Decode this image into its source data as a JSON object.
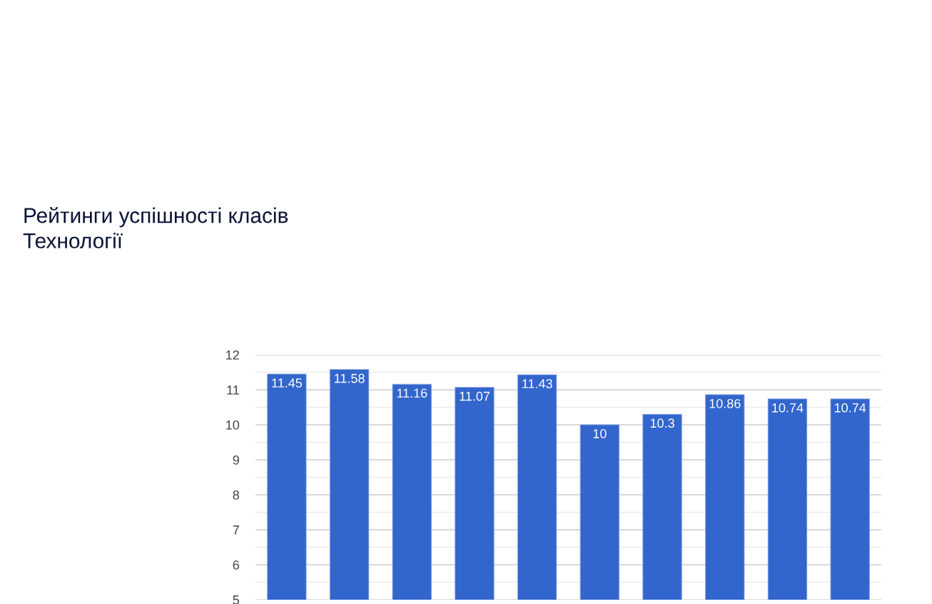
{
  "chart_data": {
    "type": "bar",
    "title": "Рейтинги успішності класів\nТехнології",
    "categories": [
      null,
      null,
      null,
      null,
      null,
      null,
      null,
      null,
      null,
      null
    ],
    "values": [
      11.45,
      11.58,
      11.16,
      11.07,
      11.43,
      10,
      10.3,
      10.86,
      10.74,
      10.74
    ],
    "color": "#3366cc",
    "ylim": [
      5,
      12
    ],
    "yticks": [
      5,
      6,
      7,
      8,
      9,
      10,
      11,
      12
    ],
    "grid": "y",
    "data_labels": true,
    "tick_labels": "y"
  }
}
